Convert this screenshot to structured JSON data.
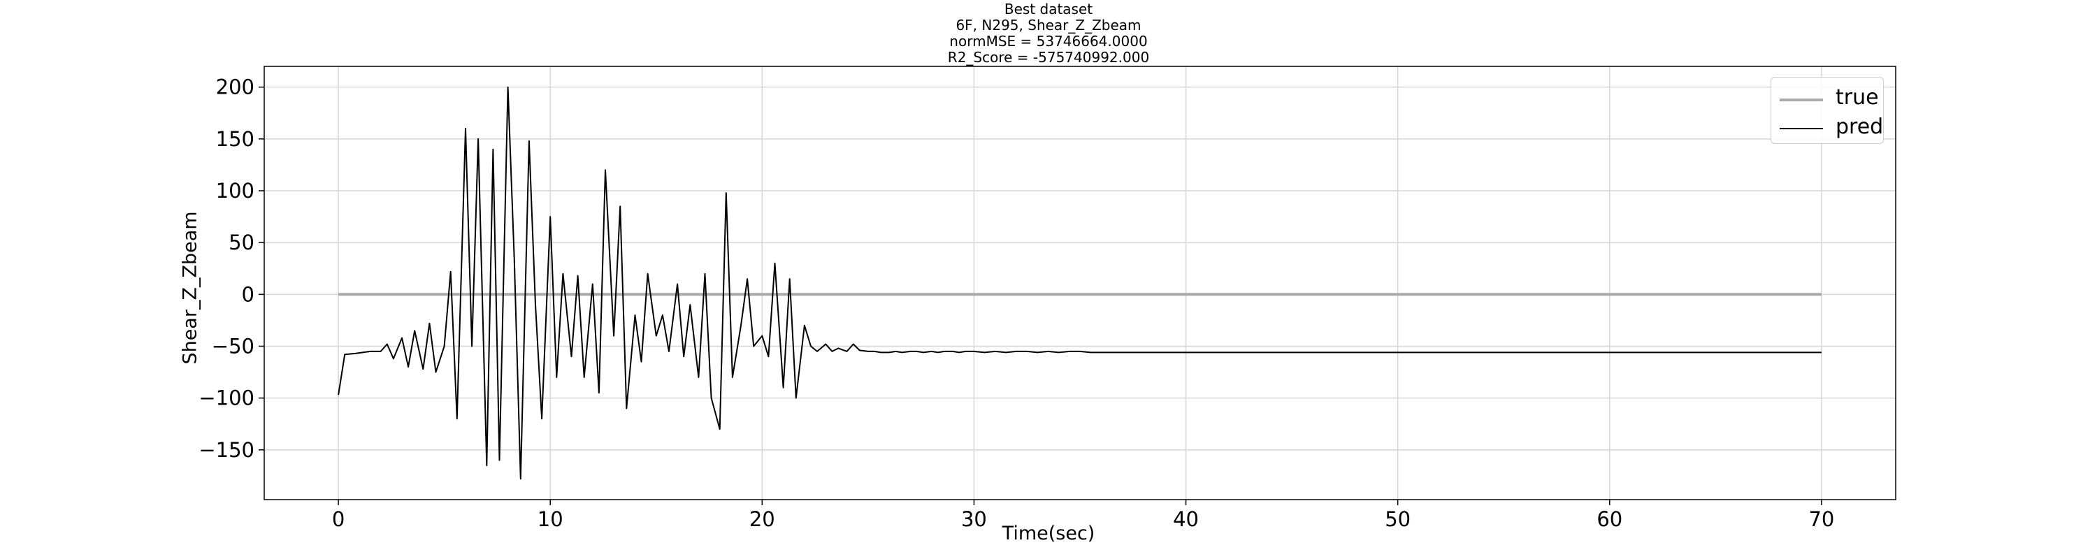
{
  "title_lines": [
    "Best dataset",
    "6F, N295, Shear_Z_Zbeam",
    "normMSE = 53746664.0000",
    "R2_Score = -575740992.000"
  ],
  "chart_data": {
    "type": "line",
    "xlabel": "Time(sec)",
    "ylabel": "Shear_Z_Zbeam",
    "xlim": [
      -3.5,
      73.5
    ],
    "ylim": [
      -198,
      220
    ],
    "xticks": [
      0,
      10,
      20,
      30,
      40,
      50,
      60,
      70
    ],
    "yticks": [
      -150,
      -100,
      -50,
      0,
      50,
      100,
      150,
      200
    ],
    "grid": true,
    "legend_position": "top-right",
    "series": [
      {
        "name": "true",
        "color": "#aaaaaa",
        "x": [
          0,
          70
        ],
        "y": [
          0,
          0
        ]
      },
      {
        "name": "pred",
        "color": "#000000",
        "x": [
          0,
          0.3,
          0.8,
          1.5,
          2.0,
          2.3,
          2.6,
          3.0,
          3.3,
          3.6,
          4.0,
          4.3,
          4.6,
          5.0,
          5.3,
          5.6,
          6.0,
          6.3,
          6.6,
          7.0,
          7.3,
          7.6,
          8.0,
          8.3,
          8.6,
          9.0,
          9.3,
          9.6,
          10.0,
          10.3,
          10.6,
          11.0,
          11.3,
          11.6,
          12.0,
          12.3,
          12.6,
          13.0,
          13.3,
          13.6,
          14.0,
          14.3,
          14.6,
          15.0,
          15.3,
          15.6,
          16.0,
          16.3,
          16.6,
          17.0,
          17.3,
          17.6,
          18.0,
          18.3,
          18.6,
          19.0,
          19.3,
          19.6,
          20.0,
          20.3,
          20.6,
          21.0,
          21.3,
          21.6,
          22.0,
          22.3,
          22.6,
          23.0,
          23.3,
          23.6,
          24.0,
          24.3,
          24.6,
          25.0,
          25.3,
          25.6,
          26.0,
          26.3,
          26.6,
          27.0,
          27.3,
          27.6,
          28.0,
          28.3,
          28.6,
          29.0,
          29.3,
          29.6,
          30.0,
          30.5,
          31.0,
          31.5,
          32.0,
          32.5,
          33.0,
          33.5,
          34.0,
          34.5,
          35.0,
          35.5,
          36.0,
          37.0,
          38.0,
          39.0,
          40.0,
          41.0,
          42.0,
          43.0,
          44.0,
          45.0,
          46.0,
          47.0,
          48.0,
          49.0,
          50.0,
          52.0,
          54.0,
          56.0,
          58.0,
          60.0,
          62.0,
          64.0,
          66.0,
          68.0,
          70.0
        ],
        "y": [
          -97,
          -58,
          -57,
          -55,
          -55,
          -48,
          -62,
          -42,
          -70,
          -35,
          -72,
          -28,
          -75,
          -50,
          22,
          -120,
          160,
          -50,
          150,
          -165,
          140,
          -160,
          200,
          35,
          -178,
          148,
          -10,
          -120,
          75,
          -80,
          20,
          -60,
          18,
          -80,
          10,
          -95,
          120,
          -40,
          85,
          -110,
          -20,
          -65,
          20,
          -40,
          -20,
          -55,
          10,
          -60,
          -10,
          -80,
          20,
          -100,
          -130,
          98,
          -80,
          -30,
          15,
          -50,
          -40,
          -60,
          30,
          -90,
          15,
          -100,
          -30,
          -50,
          -55,
          -48,
          -55,
          -52,
          -55,
          -48,
          -54,
          -55,
          -55,
          -56,
          -56,
          -55,
          -56,
          -55,
          -55,
          -56,
          -55,
          -56,
          -55,
          -55,
          -56,
          -55,
          -55,
          -56,
          -55,
          -56,
          -55,
          -55,
          -56,
          -55,
          -56,
          -55,
          -55,
          -56,
          -56,
          -56,
          -56,
          -56,
          -56,
          -56,
          -56,
          -56,
          -56,
          -56,
          -56,
          -56,
          -56,
          -56,
          -56,
          -56,
          -56,
          -56,
          -56,
          -56,
          -56,
          -56,
          -56,
          -56,
          -56
        ]
      }
    ]
  }
}
